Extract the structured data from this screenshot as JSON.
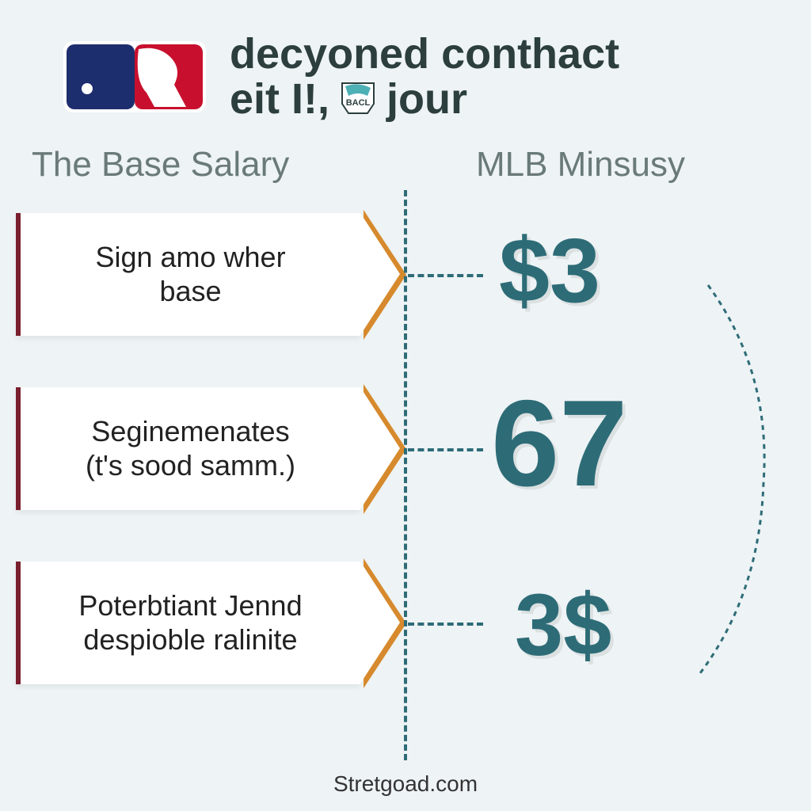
{
  "title_line1": "decyoned conthact",
  "title_line2a": "eit I!,",
  "title_line2b": "jour",
  "badge_text": "BACL",
  "columns": {
    "left": "The Base Salary",
    "right": "MLB Minsusy"
  },
  "rows": [
    {
      "label": "Sign amo wher\nbase",
      "value": "$3"
    },
    {
      "label": "Seginemenates\n(t's sood samm.)",
      "value": "67"
    },
    {
      "label": "Poterbtiant Jennd\ndespioble ralinite",
      "value": "3$"
    }
  ],
  "footer": "Stretgoad.com",
  "colors": {
    "bg": "#eef3f5",
    "teal": "#2d6c77",
    "orange": "#d68a2d",
    "darkred": "#7a1f2e",
    "mlb_blue": "#1d2e6e",
    "mlb_red": "#c8102e",
    "text_dark": "#2c3e3e",
    "text_muted": "#6a7a7a"
  }
}
